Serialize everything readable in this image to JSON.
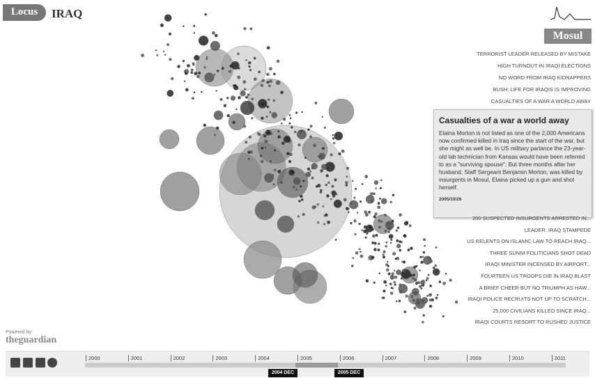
{
  "header": {
    "logo": "Locus",
    "title": "IRAQ",
    "location": "Mosul"
  },
  "headlines_top": [
    "TERRORIST LEADER RELEASED BY MISTAKE",
    "HIGH TURNOUT IN IRAQI ELECTIONS",
    "NO WORD FROM IRAQ KIDNAPPERS",
    "BUSH: LIFE FOR IRAQIS IS IMPROVING",
    "CASUALTIES OF A WAR A WORLD AWAY"
  ],
  "article": {
    "title": "Casualties of a war a world away",
    "body": "Elaina Morton is not listed as one of the 2,000 Americans now confirmed killed in Iraq since the start of the war, but she might as well be. In US military parlance the 23-year-old lab technician from Kansas would have been referred to as a \"surviving spouse\". But three months after her husband, Staff Sergeant Benjamin Morton, was killed by insurgents in Mosul, Elaina picked up a gun and shot herself.",
    "date": "2005/10/26"
  },
  "headlines_bottom": [
    "200 SUSPECTED INSURGENTS ARRESTED IN...",
    "LEADER: IRAQ STAMPEDE",
    "US RELENTS ON ISLAMIC LAW TO REACH IRAQ...",
    "THREE SUNNI POLITICIANS SHOT DEAD",
    "IRAQI MINISTER INCENSED BY AIRPORT...",
    "FOURTEEN US TROOPS DIE IN IRAQ BLAST",
    "A BRIEF CHEER BUT NO TRIUMPH AS HAW...",
    "IRAQI POLICE RECRUITS NOT UP TO SCRATCH...",
    "25,000 CIVILIANS KILLED SINCE IRAQ...",
    "IRAQI COURTS RESORT TO RUSHED JUSTICE"
  ],
  "footer": {
    "powered_by": "Powered by",
    "brand": "theguardian"
  },
  "timeline": {
    "years": [
      "2000",
      "2001",
      "2002",
      "2003",
      "2004",
      "2005",
      "2006",
      "2007",
      "2008",
      "2009",
      "2010",
      "2011"
    ],
    "range_start": "2004 DEC",
    "range_end": "2005 DEC"
  }
}
